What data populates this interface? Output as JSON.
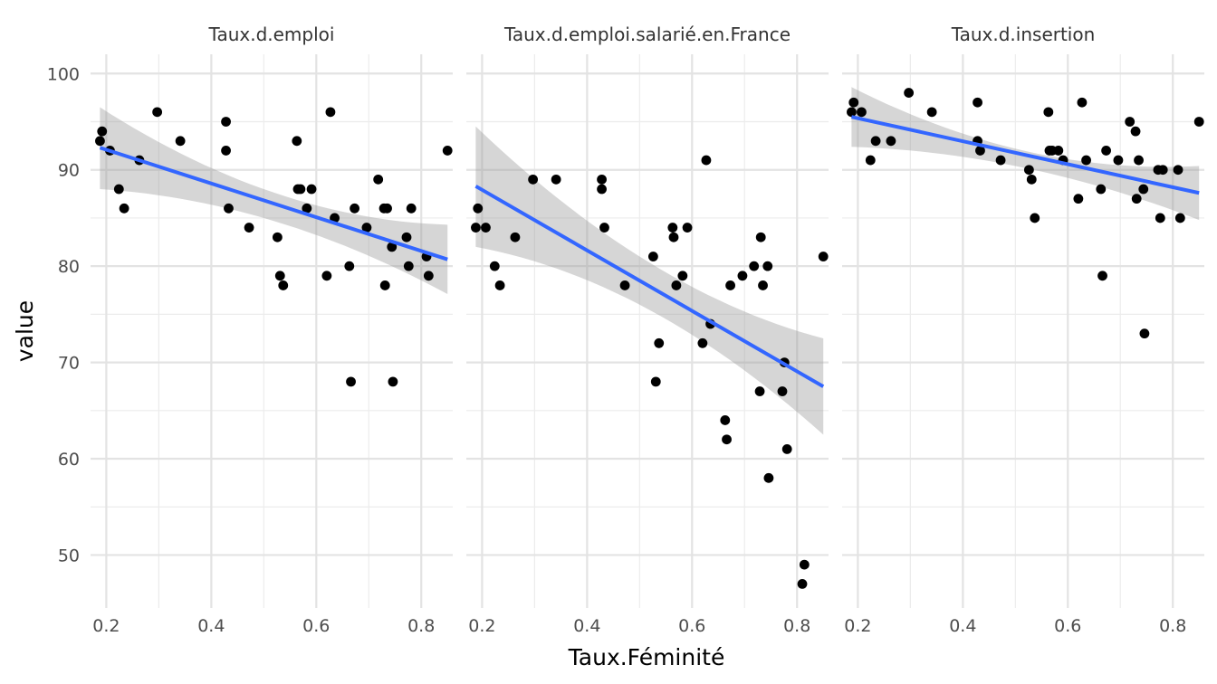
{
  "chart_data": {
    "type": "scatter",
    "xlabel": "Taux.Féminité",
    "ylabel": "value",
    "xlim": [
      0.17,
      0.86
    ],
    "ylim": [
      44.5,
      102
    ],
    "x_ticks": [
      0.2,
      0.4,
      0.6,
      0.8
    ],
    "x_tick_labels": [
      "0.2",
      "0.4",
      "0.6",
      "0.8"
    ],
    "y_ticks": [
      50,
      60,
      70,
      80,
      90,
      100
    ],
    "y_tick_labels": [
      "50",
      "60",
      "70",
      "80",
      "90",
      "100"
    ],
    "grid": true,
    "point_color": "#000000",
    "line_color": "#3366FF",
    "band_color": "#999999",
    "panels": [
      {
        "title": "Taux.d.emploi",
        "points": [
          [
            0.188,
            93
          ],
          [
            0.192,
            94
          ],
          [
            0.207,
            92
          ],
          [
            0.224,
            88
          ],
          [
            0.234,
            86
          ],
          [
            0.263,
            91
          ],
          [
            0.297,
            96
          ],
          [
            0.341,
            93
          ],
          [
            0.428,
            95
          ],
          [
            0.428,
            92
          ],
          [
            0.433,
            86
          ],
          [
            0.472,
            84
          ],
          [
            0.526,
            83
          ],
          [
            0.531,
            79
          ],
          [
            0.537,
            78
          ],
          [
            0.563,
            93
          ],
          [
            0.565,
            88
          ],
          [
            0.57,
            88
          ],
          [
            0.582,
            86
          ],
          [
            0.591,
            88
          ],
          [
            0.62,
            79
          ],
          [
            0.627,
            96
          ],
          [
            0.635,
            85
          ],
          [
            0.663,
            80
          ],
          [
            0.666,
            68
          ],
          [
            0.673,
            86
          ],
          [
            0.696,
            84
          ],
          [
            0.718,
            89
          ],
          [
            0.729,
            86
          ],
          [
            0.731,
            78
          ],
          [
            0.735,
            86
          ],
          [
            0.744,
            82
          ],
          [
            0.746,
            68
          ],
          [
            0.772,
            83
          ],
          [
            0.776,
            80
          ],
          [
            0.781,
            86
          ],
          [
            0.81,
            81
          ],
          [
            0.814,
            79
          ],
          [
            0.85,
            92
          ]
        ],
        "fit": {
          "x": [
            0.188,
            0.85
          ],
          "y": [
            92.3,
            80.7
          ]
        },
        "band": {
          "x": [
            0.188,
            0.5,
            0.85
          ],
          "upper": [
            96.5,
            88.0,
            84.3
          ],
          "lower": [
            88.0,
            85.0,
            77.1
          ]
        }
      },
      {
        "title": "Taux.d.emploi.salarié.en.France",
        "points": [
          [
            0.188,
            84
          ],
          [
            0.192,
            86
          ],
          [
            0.207,
            84
          ],
          [
            0.224,
            80
          ],
          [
            0.234,
            78
          ],
          [
            0.263,
            83
          ],
          [
            0.297,
            89
          ],
          [
            0.341,
            89
          ],
          [
            0.428,
            89
          ],
          [
            0.428,
            88
          ],
          [
            0.433,
            84
          ],
          [
            0.472,
            78
          ],
          [
            0.526,
            81
          ],
          [
            0.531,
            68
          ],
          [
            0.537,
            72
          ],
          [
            0.563,
            84
          ],
          [
            0.565,
            83
          ],
          [
            0.57,
            78
          ],
          [
            0.582,
            79
          ],
          [
            0.591,
            84
          ],
          [
            0.62,
            72
          ],
          [
            0.627,
            91
          ],
          [
            0.635,
            74
          ],
          [
            0.663,
            64
          ],
          [
            0.666,
            62
          ],
          [
            0.673,
            78
          ],
          [
            0.696,
            79
          ],
          [
            0.718,
            80
          ],
          [
            0.729,
            67
          ],
          [
            0.731,
            83
          ],
          [
            0.735,
            78
          ],
          [
            0.744,
            80
          ],
          [
            0.746,
            58
          ],
          [
            0.772,
            67
          ],
          [
            0.776,
            70
          ],
          [
            0.781,
            61
          ],
          [
            0.81,
            47
          ],
          [
            0.814,
            49
          ],
          [
            0.85,
            81
          ]
        ],
        "fit": {
          "x": [
            0.188,
            0.85
          ],
          "y": [
            88.3,
            67.5
          ]
        },
        "band": {
          "x": [
            0.188,
            0.5,
            0.85
          ],
          "upper": [
            94.5,
            81.0,
            72.5
          ],
          "lower": [
            82.0,
            76.0,
            62.5
          ]
        }
      },
      {
        "title": "Taux.d.insertion",
        "points": [
          [
            0.188,
            96
          ],
          [
            0.192,
            97
          ],
          [
            0.207,
            96
          ],
          [
            0.224,
            91
          ],
          [
            0.234,
            93
          ],
          [
            0.263,
            93
          ],
          [
            0.297,
            98
          ],
          [
            0.341,
            96
          ],
          [
            0.428,
            97
          ],
          [
            0.428,
            93
          ],
          [
            0.433,
            92
          ],
          [
            0.472,
            91
          ],
          [
            0.526,
            90
          ],
          [
            0.531,
            89
          ],
          [
            0.537,
            85
          ],
          [
            0.563,
            96
          ],
          [
            0.565,
            92
          ],
          [
            0.57,
            92
          ],
          [
            0.582,
            92
          ],
          [
            0.591,
            91
          ],
          [
            0.62,
            87
          ],
          [
            0.627,
            97
          ],
          [
            0.635,
            91
          ],
          [
            0.663,
            88
          ],
          [
            0.666,
            79
          ],
          [
            0.673,
            92
          ],
          [
            0.696,
            91
          ],
          [
            0.718,
            95
          ],
          [
            0.729,
            94
          ],
          [
            0.731,
            87
          ],
          [
            0.735,
            91
          ],
          [
            0.744,
            88
          ],
          [
            0.746,
            73
          ],
          [
            0.772,
            90
          ],
          [
            0.776,
            85
          ],
          [
            0.781,
            90
          ],
          [
            0.81,
            90
          ],
          [
            0.814,
            85
          ],
          [
            0.85,
            95
          ]
        ],
        "fit": {
          "x": [
            0.188,
            0.85
          ],
          "y": [
            95.5,
            87.6
          ]
        },
        "band": {
          "x": [
            0.188,
            0.5,
            0.85
          ],
          "upper": [
            98.6,
            92.2,
            90.4
          ],
          "lower": [
            92.4,
            90.4,
            84.8
          ]
        }
      }
    ]
  }
}
